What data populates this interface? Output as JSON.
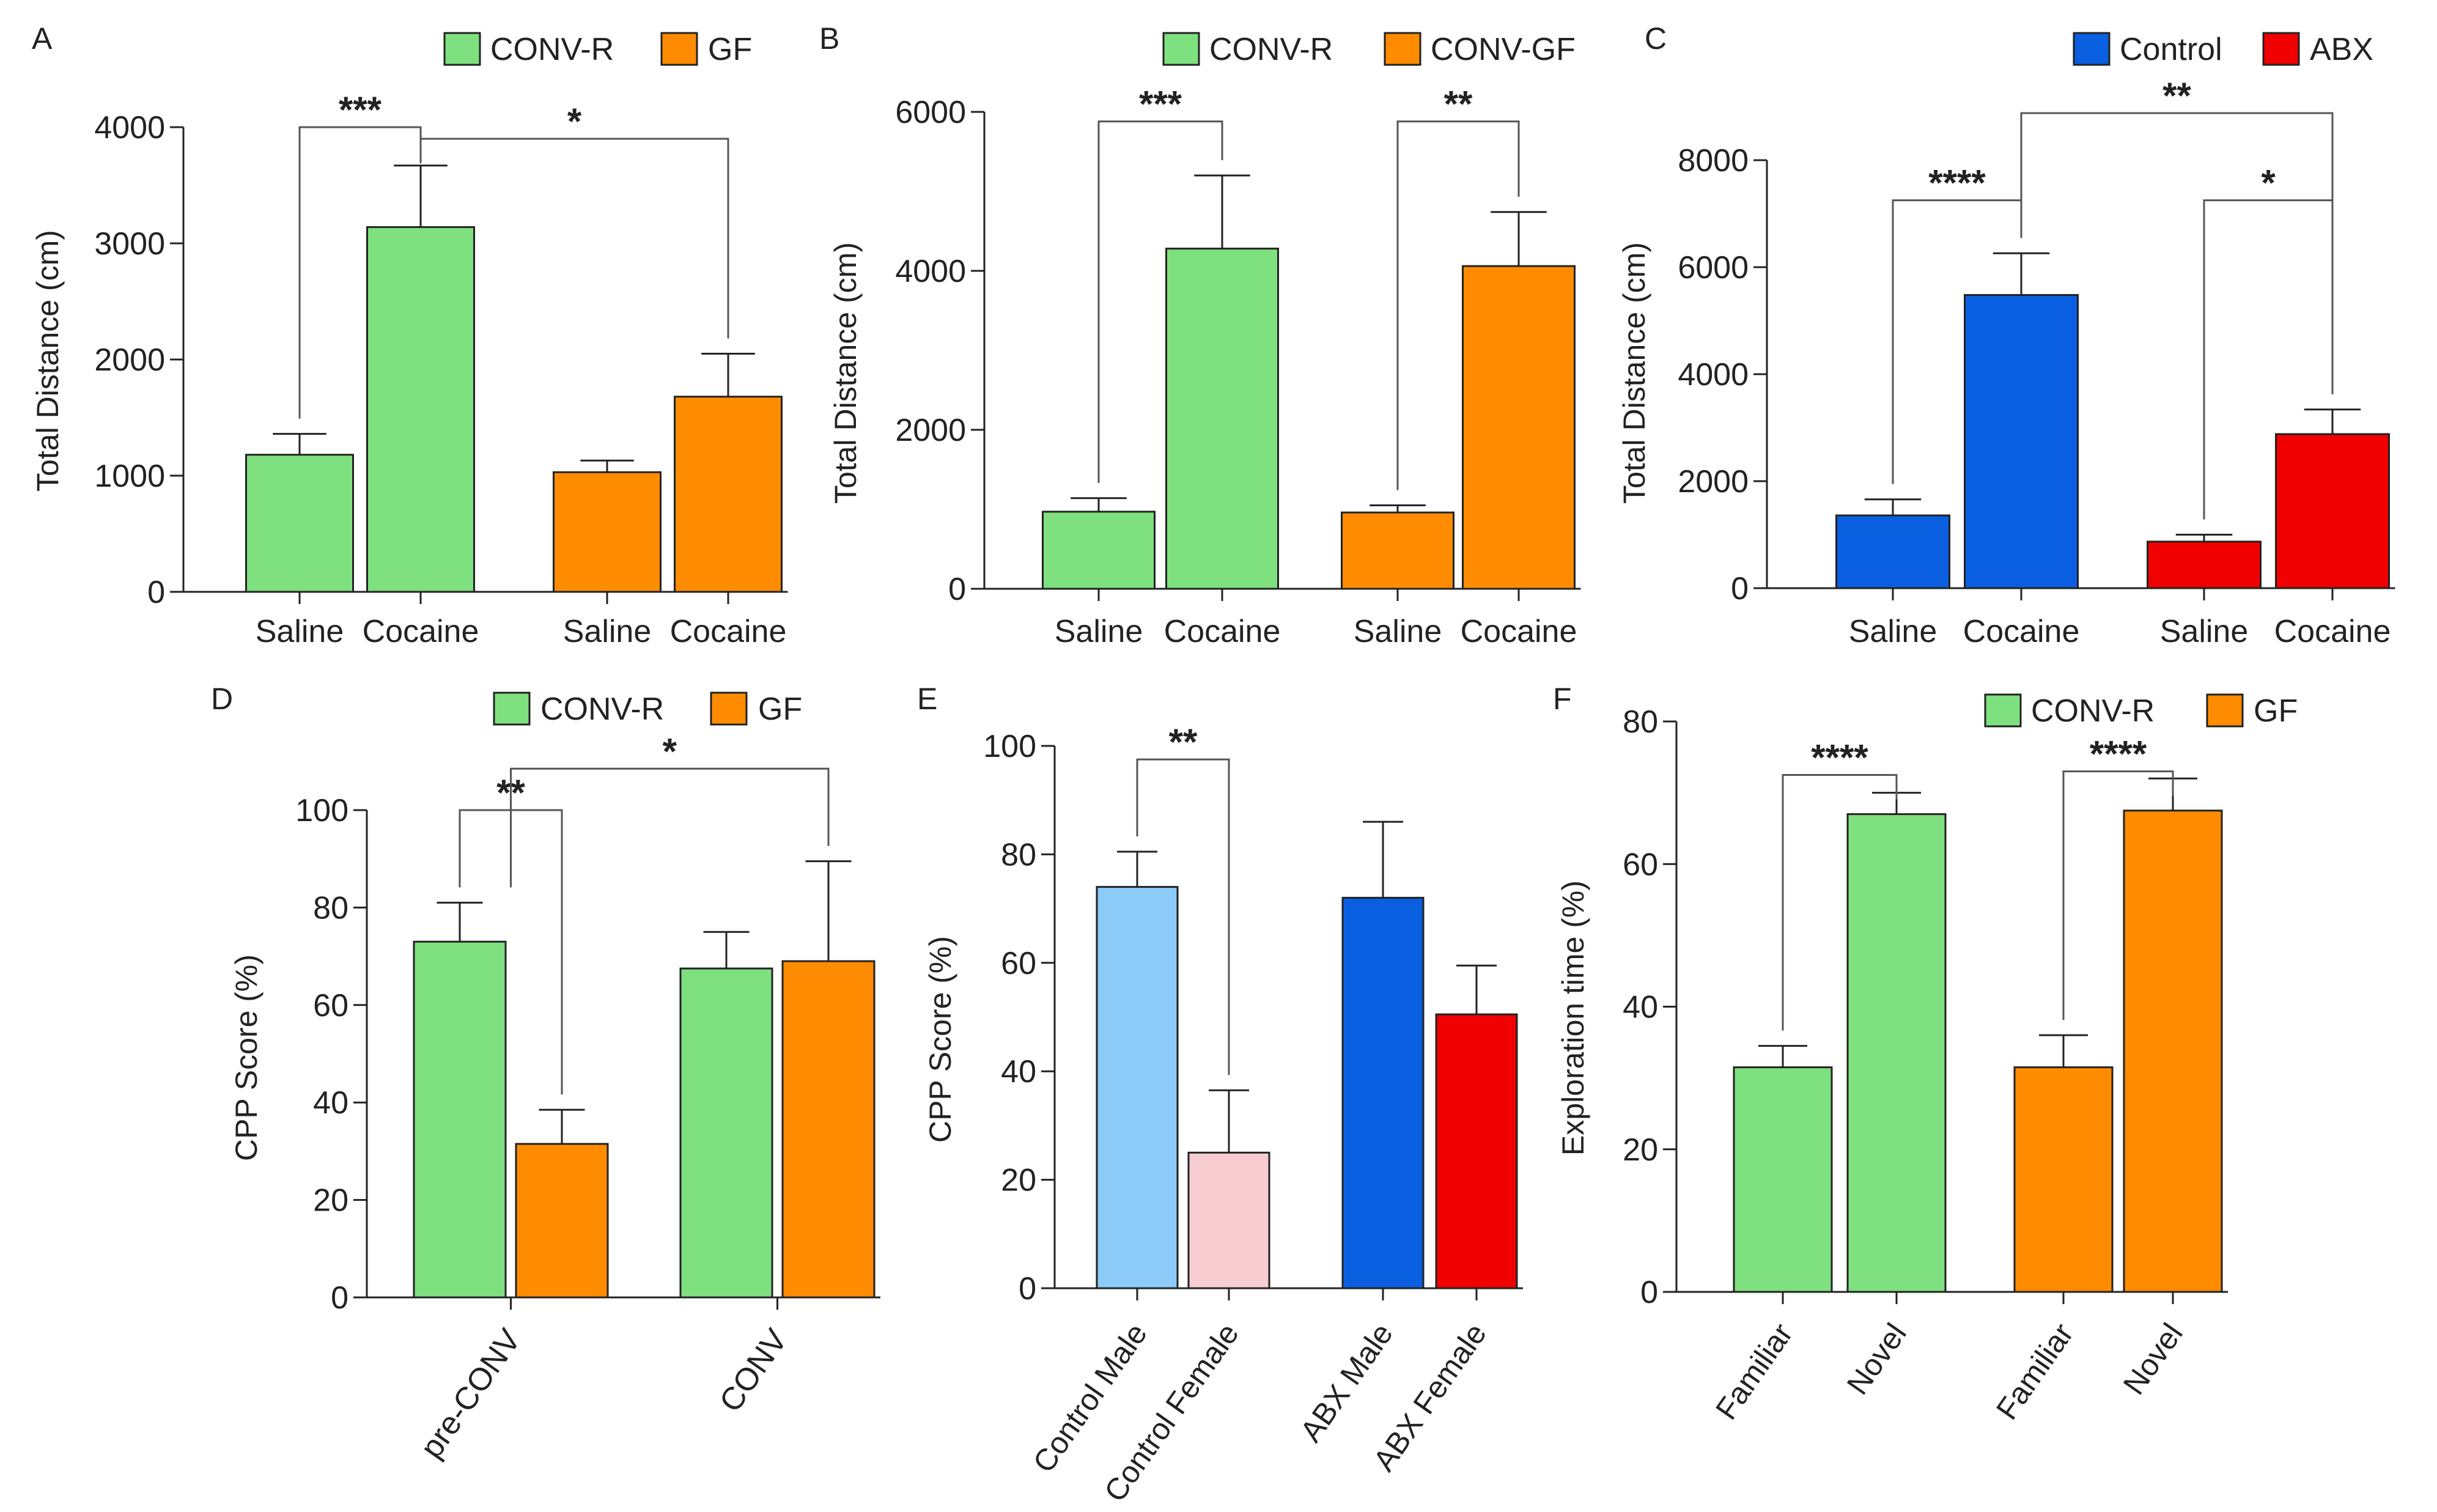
{
  "colors": {
    "green": "#7ee07e",
    "orange": "#ff8c00",
    "blue": "#0a5fe0",
    "red": "#f00000",
    "light_blue": "#8ccaf8",
    "pink": "#f8cdd2",
    "axis": "#222222"
  },
  "chart_data": [
    {
      "id": "A",
      "panel_label": "A",
      "type": "bar",
      "ylabel": "Total Distance (cm)",
      "ylim": [
        0,
        4000
      ],
      "yticks": [
        0,
        1000,
        2000,
        3000,
        4000
      ],
      "ytick_labels": [
        "0",
        "1000",
        "2000",
        "3000",
        "4000"
      ],
      "rotated_xlabels": false,
      "legend": [
        {
          "label": "CONV-R",
          "color": "green"
        },
        {
          "label": "GF",
          "color": "orange"
        }
      ],
      "bars": [
        {
          "label": "Saline",
          "value": 1180,
          "error": 180,
          "color": "green"
        },
        {
          "label": "Cocaine",
          "value": 3140,
          "error": 530,
          "color": "green"
        },
        {
          "label": "Saline",
          "value": 1030,
          "error": 100,
          "color": "orange"
        },
        {
          "label": "Cocaine",
          "value": 1680,
          "error": 370,
          "color": "orange"
        }
      ],
      "significance": [
        {
          "from": 0,
          "to": 1,
          "label": "***",
          "level": 4000
        },
        {
          "from": 1,
          "to": 3,
          "label": "*",
          "level": 3900
        }
      ]
    },
    {
      "id": "B",
      "panel_label": "B",
      "type": "bar",
      "ylabel": "Total Distance (cm)",
      "ylim": [
        0,
        6000
      ],
      "yticks": [
        0,
        2000,
        4000,
        6000
      ],
      "ytick_labels": [
        "0",
        "2000",
        "4000",
        "6000"
      ],
      "rotated_xlabels": false,
      "legend": [
        {
          "label": "CONV-R",
          "color": "green"
        },
        {
          "label": "CONV-GF",
          "color": "orange"
        }
      ],
      "bars": [
        {
          "label": "Saline",
          "value": 970,
          "error": 170,
          "color": "green"
        },
        {
          "label": "Cocaine",
          "value": 4280,
          "error": 920,
          "color": "green"
        },
        {
          "label": "Saline",
          "value": 960,
          "error": 90,
          "color": "orange"
        },
        {
          "label": "Cocaine",
          "value": 4060,
          "error": 680,
          "color": "orange"
        }
      ],
      "significance": [
        {
          "from": 0,
          "to": 1,
          "label": "***",
          "level": 5880
        },
        {
          "from": 2,
          "to": 3,
          "label": "**",
          "level": 5880
        }
      ]
    },
    {
      "id": "C",
      "panel_label": "C",
      "type": "bar",
      "ylabel": "Total Distance (cm)",
      "ylim": [
        0,
        8000
      ],
      "yticks": [
        0,
        2000,
        4000,
        6000,
        8000
      ],
      "ytick_labels": [
        "0",
        "2000",
        "4000",
        "6000",
        "8000"
      ],
      "rotated_xlabels": false,
      "legend": [
        {
          "label": "Control",
          "color": "blue"
        },
        {
          "label": "ABX",
          "color": "red"
        }
      ],
      "bars": [
        {
          "label": "Saline",
          "value": 1360,
          "error": 300,
          "color": "blue"
        },
        {
          "label": "Cocaine",
          "value": 5480,
          "error": 780,
          "color": "blue"
        },
        {
          "label": "Saline",
          "value": 870,
          "error": 130,
          "color": "red"
        },
        {
          "label": "Cocaine",
          "value": 2880,
          "error": 460,
          "color": "red"
        }
      ],
      "significance": [
        {
          "from": 0,
          "to": 1,
          "label": "****",
          "level": 7250
        },
        {
          "from": 2,
          "to": 3,
          "label": "*",
          "level": 7250
        },
        {
          "from": 1,
          "to": 3,
          "label": "**",
          "level": 8880
        }
      ]
    },
    {
      "id": "D",
      "panel_label": "D",
      "type": "bar",
      "ylabel": "CPP Score (%)",
      "ylim": [
        0,
        100
      ],
      "yticks": [
        0,
        20,
        40,
        60,
        80,
        100
      ],
      "ytick_labels": [
        "0",
        "20",
        "40",
        "60",
        "80",
        "100"
      ],
      "rotated_xlabels": true,
      "legend": [
        {
          "label": "CONV-R",
          "color": "green"
        },
        {
          "label": "GF",
          "color": "orange"
        }
      ],
      "bars": [
        {
          "value": 73,
          "error": 8,
          "color": "green"
        },
        {
          "value": 31.5,
          "error": 7,
          "color": "orange"
        },
        {
          "value": 67.5,
          "error": 7.5,
          "color": "green"
        },
        {
          "value": 69,
          "error": 20.5,
          "color": "orange"
        }
      ],
      "xgroups": [
        {
          "label": "pre-CONV",
          "bars": [
            0,
            1
          ]
        },
        {
          "label": "CONV",
          "bars": [
            2,
            3
          ]
        }
      ],
      "significance": [
        {
          "from": 0,
          "to": 1,
          "label": "**",
          "level": 100
        },
        {
          "from": 0.5,
          "to": 3,
          "label": "*",
          "level": 108.5
        }
      ]
    },
    {
      "id": "E",
      "panel_label": "E",
      "type": "bar",
      "ylabel": "CPP Score (%)",
      "ylim": [
        0,
        100
      ],
      "yticks": [
        0,
        20,
        40,
        60,
        80,
        100
      ],
      "ytick_labels": [
        "0",
        "20",
        "40",
        "60",
        "80",
        "100"
      ],
      "rotated_xlabels": true,
      "legend": [],
      "bars": [
        {
          "label": "Control Male",
          "value": 74,
          "error": 6.5,
          "color": "light_blue"
        },
        {
          "label": "Control Female",
          "value": 25,
          "error": 11.5,
          "color": "pink"
        },
        {
          "label": "ABX Male",
          "value": 72,
          "error": 14,
          "color": "blue"
        },
        {
          "label": "ABX Female",
          "value": 50.5,
          "error": 9,
          "color": "red"
        }
      ],
      "significance": [
        {
          "from": 0,
          "to": 1,
          "label": "**",
          "level": 97.5
        }
      ]
    },
    {
      "id": "F",
      "panel_label": "F",
      "type": "bar",
      "ylabel": "Exploration time (%)",
      "ylim": [
        0,
        80
      ],
      "yticks": [
        0,
        20,
        40,
        60,
        80
      ],
      "ytick_labels": [
        "0",
        "20",
        "40",
        "60",
        "80"
      ],
      "rotated_xlabels": true,
      "legend": [
        {
          "label": "CONV-R",
          "color": "green"
        },
        {
          "label": "GF",
          "color": "orange"
        }
      ],
      "bars": [
        {
          "label": "Familiar",
          "value": 31.5,
          "error": 3,
          "color": "green"
        },
        {
          "label": "Novel",
          "value": 67,
          "error": 3,
          "color": "green"
        },
        {
          "label": "Familiar",
          "value": 31.5,
          "error": 4.5,
          "color": "orange"
        },
        {
          "label": "Novel",
          "value": 67.5,
          "error": 4.5,
          "color": "orange"
        }
      ],
      "significance": [
        {
          "from": 0,
          "to": 1,
          "label": "****",
          "level": 72.5
        },
        {
          "from": 2,
          "to": 3,
          "label": "****",
          "level": 73
        }
      ]
    }
  ]
}
